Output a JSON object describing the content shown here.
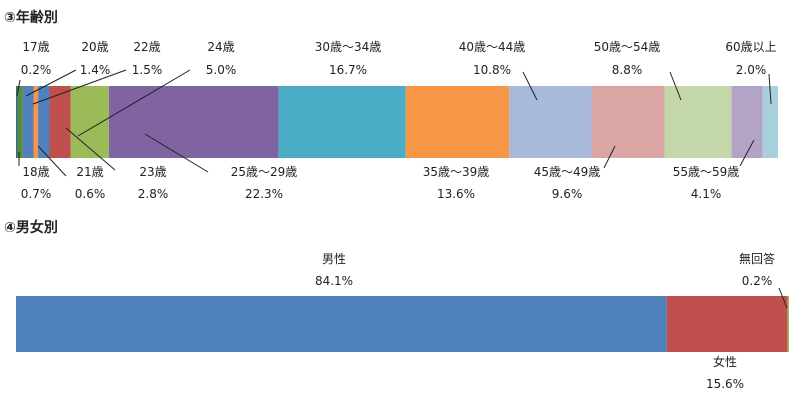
{
  "chart_data": [
    {
      "type": "bar",
      "stacked": true,
      "orientation": "horizontal",
      "title": "③年齢別",
      "categories": [
        "17歳",
        "18歳",
        "20歳",
        "21歳",
        "22歳",
        "23歳",
        "24歳",
        "25歳〜29歳",
        "30歳〜34歳",
        "35歳〜39歳",
        "40歳〜44歳",
        "45歳〜49歳",
        "50歳〜54歳",
        "55歳〜59歳",
        "60歳以上"
      ],
      "values": [
        0.2,
        0.7,
        1.4,
        0.6,
        1.5,
        2.8,
        5.0,
        22.3,
        16.7,
        13.6,
        10.8,
        9.6,
        8.8,
        4.1,
        2.0
      ],
      "value_labels": [
        "0.2%",
        "0.7%",
        "1.4%",
        "0.6%",
        "1.5%",
        "2.8%",
        "5.0%",
        "22.3%",
        "16.7%",
        "13.6%",
        "10.8%",
        "9.6%",
        "8.8%",
        "4.1%",
        "2.0%"
      ],
      "colors": [
        "#2f6d8c",
        "#5b8a3a",
        "#4f81bd",
        "#f79646",
        "#4f81bd",
        "#c0504d",
        "#9bbb59",
        "#8064a2",
        "#4bacc6",
        "#f79646",
        "#a9b9da",
        "#d9a6a4",
        "#c3d7a9",
        "#b3a4c7",
        "#a8cfdc"
      ],
      "unit": "%"
    },
    {
      "type": "bar",
      "stacked": true,
      "orientation": "horizontal",
      "title": "④男女別",
      "categories": [
        "男性",
        "女性",
        "無回答"
      ],
      "values": [
        84.1,
        15.6,
        0.2
      ],
      "value_labels": [
        "84.1%",
        "15.6%",
        "0.2%"
      ],
      "colors": [
        "#4f81bd",
        "#c0504d",
        "#9bbb59"
      ],
      "unit": "%"
    }
  ]
}
